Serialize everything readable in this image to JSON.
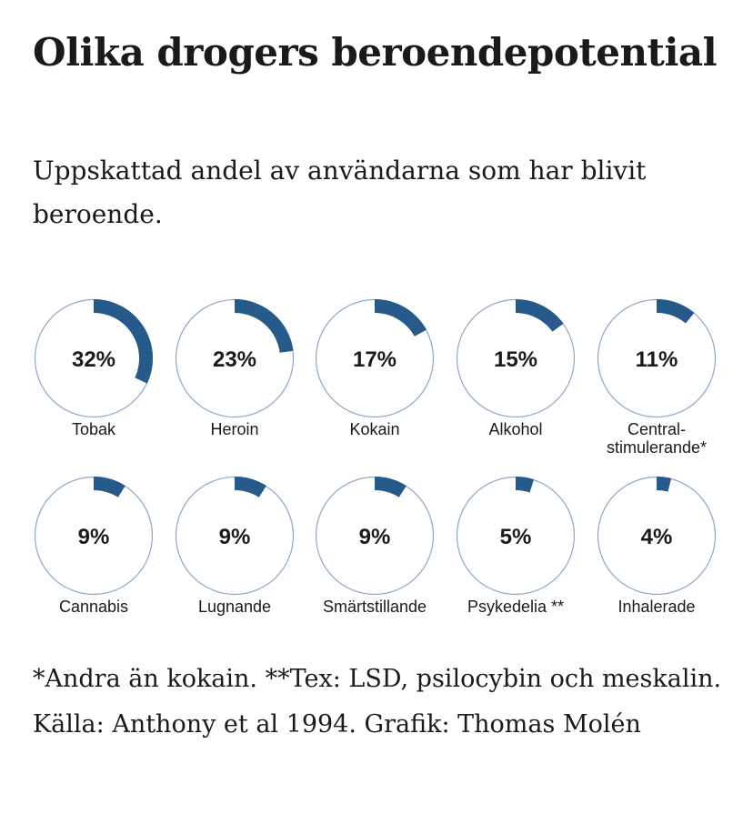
{
  "title": "Olika drogers beroendepotential",
  "subtitle": "Uppskattad andel av användarna som har blivit beroende.",
  "footnote": " *Andra än kokain. **Tex: LSD, psilocybin och meskalin. Källa: Anthony et al 1994. Grafik: Thomas Molén",
  "colors": {
    "accent": "#255a8a",
    "ring": "#8fa8c6",
    "text": "#1a1a1a"
  },
  "chart_data": {
    "type": "donut",
    "title": "Olika drogers beroendepotential",
    "subtitle": "Uppskattad andel av användarna som har blivit beroende.",
    "unit": "%",
    "items": [
      {
        "category": "Tobak",
        "value": 32,
        "label": "32%"
      },
      {
        "category": "Heroin",
        "value": 23,
        "label": "23%"
      },
      {
        "category": "Kokain",
        "value": 17,
        "label": "17%"
      },
      {
        "category": "Alkohol",
        "value": 15,
        "label": "15%"
      },
      {
        "category": "Central-\nstimulerande*",
        "value": 11,
        "label": "11%"
      },
      {
        "category": "Cannabis",
        "value": 9,
        "label": "9%"
      },
      {
        "category": "Lugnande",
        "value": 9,
        "label": "9%"
      },
      {
        "category": "Smärtstillande",
        "value": 9,
        "label": "9%"
      },
      {
        "category": "Psykedelia **",
        "value": 5,
        "label": "5%"
      },
      {
        "category": "Inhalerade",
        "value": 4,
        "label": "4%"
      }
    ]
  }
}
